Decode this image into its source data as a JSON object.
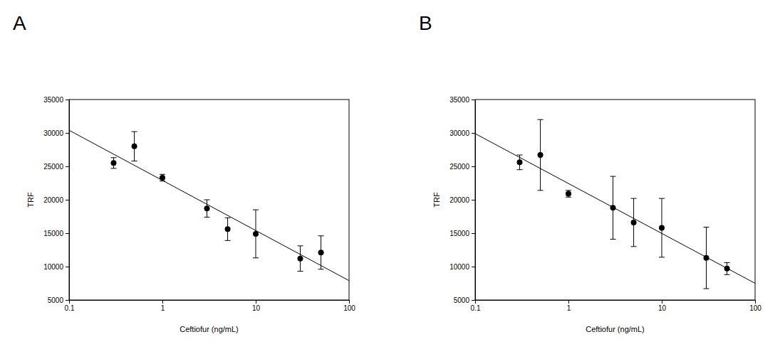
{
  "chart_data": [
    {
      "type": "scatter",
      "title": "A",
      "x_label": "Ceftiofur (ng/mL)",
      "y_label": "TRF",
      "log": "x",
      "xlim": [
        0.1,
        100
      ],
      "xticks": [
        0.1,
        1,
        10,
        100
      ],
      "ylim": [
        5000,
        35000
      ],
      "yticks": [
        5000,
        10000,
        15000,
        20000,
        25000,
        30000,
        35000
      ],
      "series": [
        {
          "type": "scatter",
          "marker": "circle",
          "color": "#000000",
          "x": [
            0.3,
            0.5,
            1,
            3,
            5,
            10,
            30,
            50
          ],
          "values": [
            25500,
            28000,
            23300,
            18700,
            15600,
            14900,
            11200,
            12100
          ],
          "errors": [
            800,
            2200,
            500,
            1300,
            1700,
            3600,
            1900,
            2500
          ]
        },
        {
          "type": "line",
          "line_style": "solid",
          "color": "#000000",
          "x": [
            0.1,
            100
          ],
          "values": [
            30400,
            7900
          ]
        }
      ]
    },
    {
      "type": "scatter",
      "title": "B",
      "x_label": "Ceftiofur (ng/mL)",
      "y_label": "TRF",
      "log": "x",
      "xlim": [
        0.1,
        100
      ],
      "xticks": [
        0.1,
        1,
        10,
        100
      ],
      "ylim": [
        5000,
        35000
      ],
      "yticks": [
        5000,
        10000,
        15000,
        20000,
        25000,
        30000,
        35000
      ],
      "series": [
        {
          "type": "scatter",
          "marker": "circle",
          "color": "#000000",
          "x": [
            0.3,
            0.5,
            1,
            3,
            5,
            10,
            30,
            50
          ],
          "values": [
            25600,
            26700,
            20900,
            18800,
            16600,
            15800,
            11300,
            9700
          ],
          "errors": [
            1100,
            5300,
            500,
            4700,
            3600,
            4400,
            4600,
            900
          ]
        },
        {
          "type": "line",
          "line_style": "solid",
          "color": "#000000",
          "x": [
            0.1,
            100
          ],
          "values": [
            29900,
            7500
          ]
        }
      ]
    }
  ]
}
